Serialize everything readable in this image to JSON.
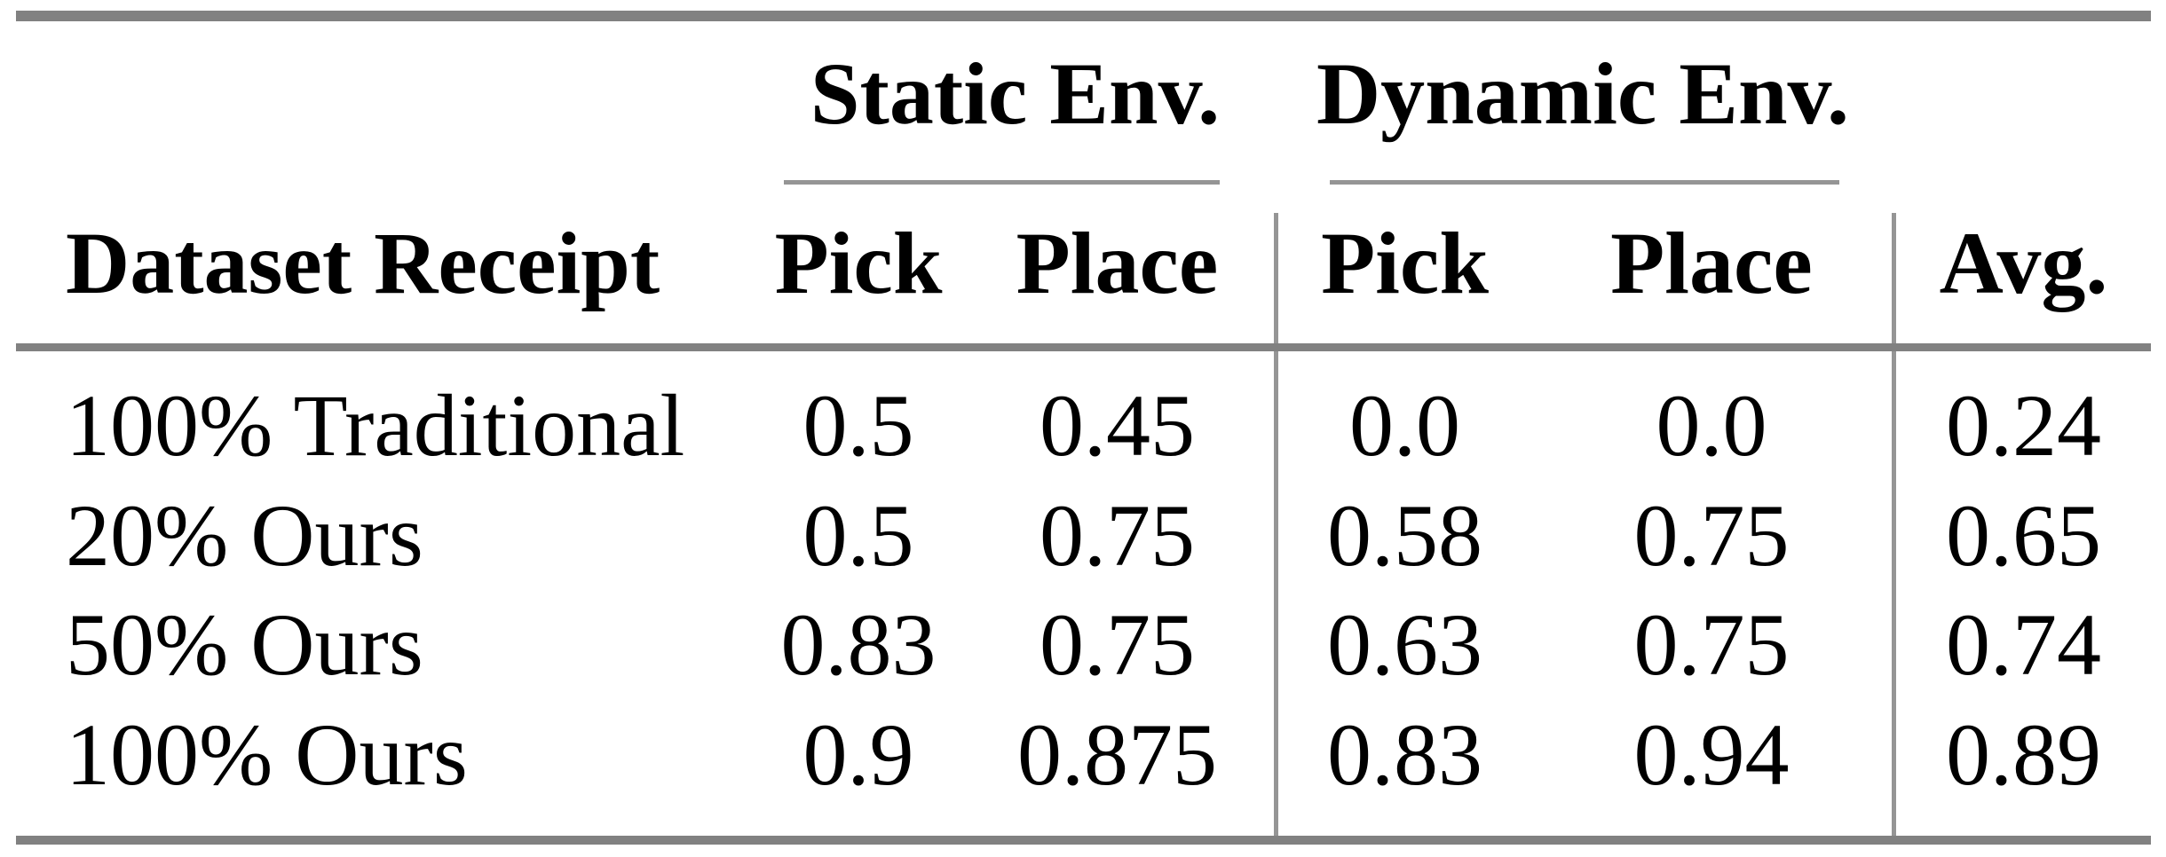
{
  "colors": {
    "rule_heavy": "#818181",
    "rule_light": "#959595",
    "text_color": "#000000",
    "page_bg": "#ffffff"
  },
  "table": {
    "groups": [
      {
        "label": "Static Env."
      },
      {
        "label": "Dynamic Env."
      }
    ],
    "header": {
      "cells": [
        "Dataset Receipt",
        "Pick",
        "Place",
        "Pick",
        "Place",
        "Avg."
      ]
    },
    "rows": [
      {
        "cells": [
          "100% Traditional",
          "0.5",
          "0.45",
          "0.0",
          "0.0",
          "0.24"
        ]
      },
      {
        "cells": [
          "20% Ours",
          "0.5",
          "0.75",
          "0.58",
          "0.75",
          "0.65"
        ]
      },
      {
        "cells": [
          "50% Ours",
          "0.83",
          "0.75",
          "0.63",
          "0.75",
          "0.74"
        ]
      },
      {
        "cells": [
          "100% Ours",
          "0.9",
          "0.875",
          "0.83",
          "0.94",
          "0.89"
        ]
      }
    ]
  },
  "chart_data": {
    "type": "table",
    "title": "",
    "column_groups": [
      "Static Env.",
      "Dynamic Env."
    ],
    "columns": [
      "Dataset Receipt",
      "Static Env. Pick",
      "Static Env. Place",
      "Dynamic Env. Pick",
      "Dynamic Env. Place",
      "Avg."
    ],
    "rows": [
      [
        "100% Traditional",
        0.5,
        0.45,
        0.0,
        0.0,
        0.24
      ],
      [
        "20% Ours",
        0.5,
        0.75,
        0.58,
        0.75,
        0.65
      ],
      [
        "50% Ours",
        0.83,
        0.75,
        0.63,
        0.75,
        0.74
      ],
      [
        "100% Ours",
        0.9,
        0.875,
        0.83,
        0.94,
        0.89
      ]
    ]
  }
}
